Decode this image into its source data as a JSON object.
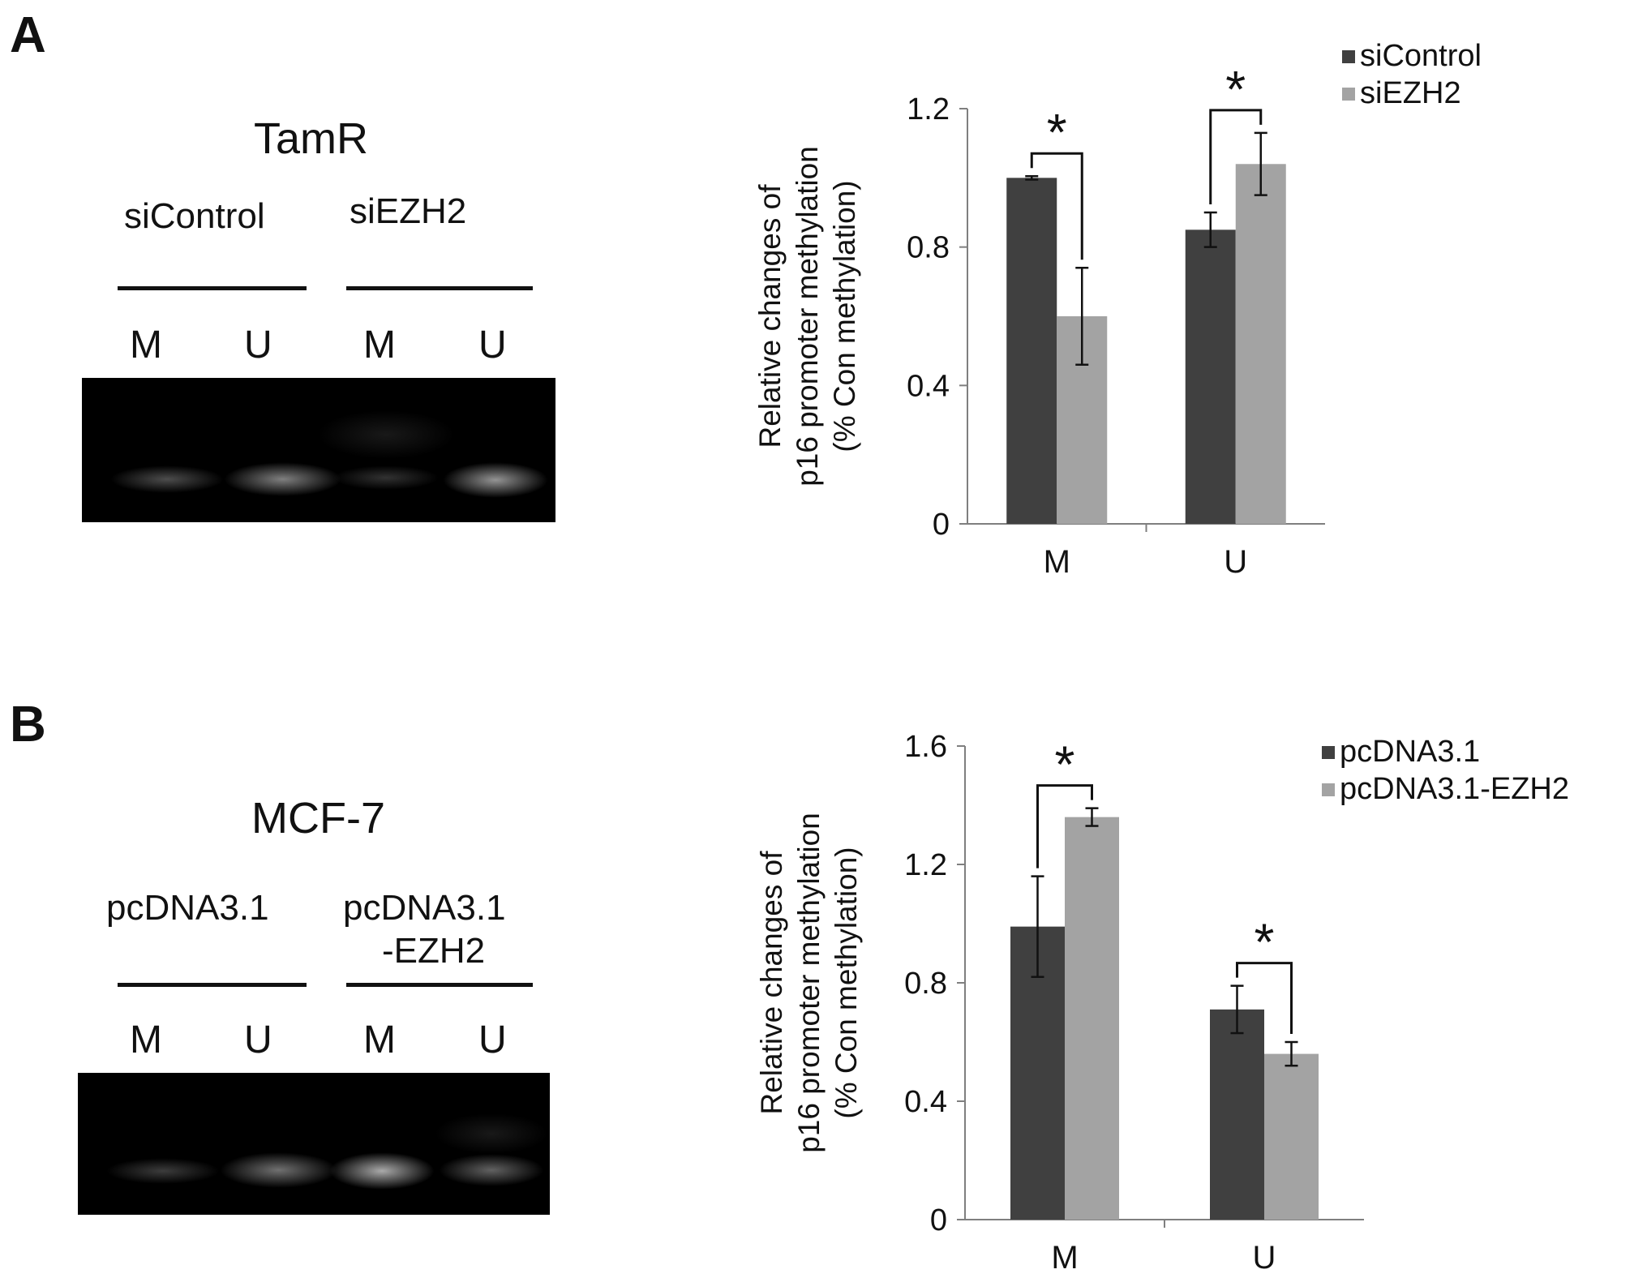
{
  "panels": {
    "a": {
      "letter": "A",
      "gel": {
        "title": "TamR",
        "condition1": "siControl",
        "condition2": "siEZH2",
        "lanes": [
          "M",
          "U",
          "M",
          "U"
        ]
      }
    },
    "b": {
      "letter": "B",
      "gel": {
        "title": "MCF-7",
        "condition1": "pcDNA3.1",
        "condition2_line1": "pcDNA3.1",
        "condition2_line2": "-EZH2",
        "lanes": [
          "M",
          "U",
          "M",
          "U"
        ]
      }
    }
  },
  "colors": {
    "series1": "#404040",
    "series2": "#a3a3a3",
    "axis": "#7f7f7f",
    "text": "#111111"
  },
  "chart_data": [
    {
      "type": "bar",
      "panel": "A",
      "categories": [
        "M",
        "U"
      ],
      "series": [
        {
          "name": "siControl",
          "values": [
            1.0,
            0.85
          ],
          "errors": [
            0.005,
            0.05
          ]
        },
        {
          "name": "siEZH2",
          "values": [
            0.6,
            1.04
          ],
          "errors": [
            0.14,
            0.09
          ]
        }
      ],
      "ylabel_line1": "Relative changes of",
      "ylabel_line2": "p16 promoter methylation",
      "ylabel_line3": "(% Con methylation)",
      "ylim": [
        0,
        1.2
      ],
      "yticks": [
        "0",
        "0.4",
        "0.8",
        "1.2"
      ],
      "significance": [
        "*",
        "*"
      ],
      "legend_position": "top-right",
      "grid": false
    },
    {
      "type": "bar",
      "panel": "B",
      "categories": [
        "M",
        "U"
      ],
      "series": [
        {
          "name": "pcDNA3.1",
          "values": [
            0.99,
            0.71
          ],
          "errors": [
            0.17,
            0.08
          ]
        },
        {
          "name": "pcDNA3.1-EZH2",
          "values": [
            1.36,
            0.56
          ],
          "errors": [
            0.03,
            0.04
          ]
        }
      ],
      "ylabel_line1": "Relative changes of",
      "ylabel_line2": "p16 promoter methylation",
      "ylabel_line3": "(% Con methylation)",
      "ylim": [
        0,
        1.6
      ],
      "yticks": [
        "0",
        "0.4",
        "0.8",
        "1.2",
        "1.6"
      ],
      "significance": [
        "*",
        "*"
      ],
      "legend_position": "top-right",
      "grid": false
    }
  ]
}
